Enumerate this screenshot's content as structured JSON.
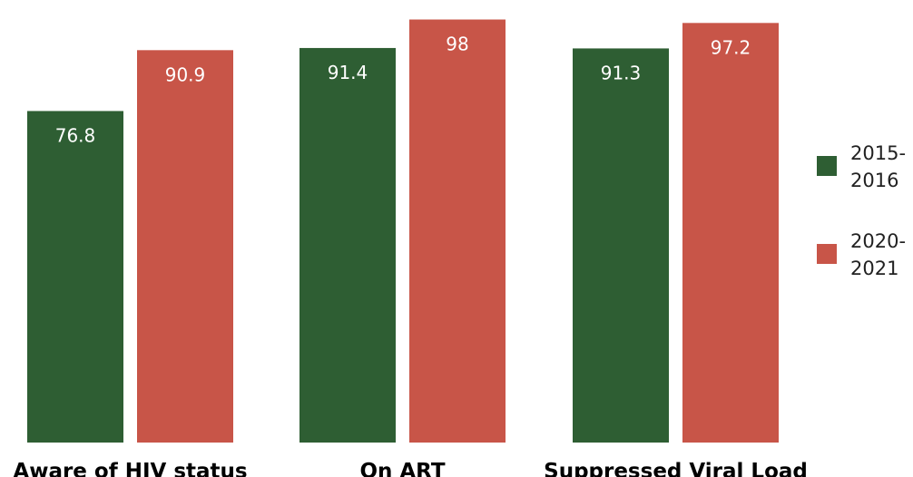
{
  "chart_data": {
    "type": "bar",
    "categories": [
      "Aware of HIV status",
      "On ART",
      "Suppressed Viral Load"
    ],
    "series": [
      {
        "name": "2015-2016",
        "legend_lines": [
          "2015-",
          "2016"
        ],
        "values": [
          76.8,
          91.4,
          91.3
        ],
        "color": "#2e5e33"
      },
      {
        "name": "2020-2021",
        "legend_lines": [
          "2020-",
          "2021"
        ],
        "values": [
          90.9,
          98,
          97.2
        ],
        "color": "#c85548"
      }
    ],
    "ylim": [
      0,
      100
    ],
    "grid": false,
    "legend_position": "right",
    "title": "",
    "xlabel": "",
    "ylabel": ""
  }
}
